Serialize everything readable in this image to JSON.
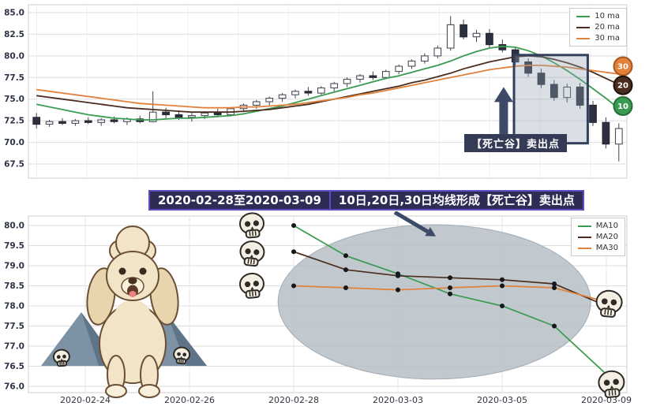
{
  "colors": {
    "ma10": "#3a9b50",
    "ma20": "#4a2d1f",
    "ma30": "#e0813c",
    "annotation_bg": "#343b57",
    "banner_bg": "#2e2c55",
    "banner_border": "#5a4ec0",
    "highlight_border": "#32405c",
    "ellipse_fill": "#b6bfc7",
    "candle_up": "#ffffff",
    "candle_down": "#2c3040"
  },
  "banner": {
    "left": "2020-02-28至2020-03-09",
    "right": "10日,20日,30日均线形成【死亡谷】卖出点"
  },
  "chart_data": [
    {
      "type": "candlestick",
      "title": "",
      "ylim": [
        66.6,
        85.9
      ],
      "yticks": [
        67.5,
        70.0,
        72.5,
        75.0,
        77.5,
        80.0,
        82.5,
        85.0
      ],
      "legend": [
        {
          "label": "10 ma",
          "key": "ma10"
        },
        {
          "label": "20 ma",
          "key": "ma20"
        },
        {
          "label": "30 ma",
          "key": "ma30"
        }
      ],
      "candles_ohlc": [
        [
          72.9,
          73.4,
          71.6,
          72.1
        ],
        [
          72.1,
          72.6,
          71.8,
          72.4
        ],
        [
          72.4,
          72.8,
          72.0,
          72.2
        ],
        [
          72.2,
          72.7,
          71.9,
          72.5
        ],
        [
          72.5,
          72.9,
          72.1,
          72.3
        ],
        [
          72.3,
          72.8,
          71.9,
          72.6
        ],
        [
          72.6,
          73.0,
          72.2,
          72.4
        ],
        [
          72.4,
          72.9,
          72.0,
          72.7
        ],
        [
          72.7,
          73.1,
          72.2,
          72.4
        ],
        [
          72.4,
          75.9,
          72.3,
          73.5
        ],
        [
          73.5,
          74.0,
          72.8,
          73.2
        ],
        [
          73.2,
          73.7,
          72.6,
          72.9
        ],
        [
          72.9,
          73.4,
          72.4,
          73.1
        ],
        [
          73.1,
          73.6,
          72.7,
          73.4
        ],
        [
          73.4,
          73.9,
          72.9,
          73.2
        ],
        [
          73.2,
          74.1,
          73.0,
          73.9
        ],
        [
          73.9,
          74.5,
          73.5,
          74.3
        ],
        [
          74.3,
          74.9,
          73.9,
          74.7
        ],
        [
          74.7,
          75.3,
          74.3,
          75.1
        ],
        [
          75.1,
          75.7,
          74.7,
          75.5
        ],
        [
          75.5,
          76.1,
          75.1,
          75.9
        ],
        [
          75.9,
          76.4,
          75.4,
          75.7
        ],
        [
          75.7,
          76.5,
          75.5,
          76.3
        ],
        [
          76.3,
          77.0,
          75.9,
          76.8
        ],
        [
          76.8,
          77.5,
          76.4,
          77.3
        ],
        [
          77.3,
          77.9,
          76.9,
          77.7
        ],
        [
          77.7,
          78.2,
          77.2,
          77.5
        ],
        [
          77.5,
          78.4,
          77.3,
          78.2
        ],
        [
          78.2,
          79.0,
          77.9,
          78.8
        ],
        [
          78.8,
          79.6,
          78.5,
          79.4
        ],
        [
          79.4,
          80.3,
          79.1,
          80.0
        ],
        [
          80.0,
          81.2,
          79.7,
          80.9
        ],
        [
          80.9,
          84.6,
          80.6,
          83.6
        ],
        [
          83.6,
          84.2,
          81.9,
          82.2
        ],
        [
          82.2,
          83.0,
          81.6,
          82.6
        ],
        [
          82.6,
          83.1,
          80.9,
          81.3
        ],
        [
          81.3,
          81.9,
          80.4,
          80.7
        ],
        [
          80.7,
          81.0,
          78.9,
          79.3
        ],
        [
          79.3,
          79.7,
          77.6,
          78.0
        ],
        [
          78.0,
          78.5,
          76.3,
          76.7
        ],
        [
          76.7,
          77.2,
          74.8,
          75.2
        ],
        [
          75.2,
          76.8,
          74.6,
          76.4
        ],
        [
          76.4,
          76.9,
          73.9,
          74.3
        ],
        [
          74.3,
          74.8,
          71.9,
          72.3
        ],
        [
          72.3,
          72.9,
          69.3,
          69.8
        ],
        [
          69.8,
          72.2,
          67.8,
          71.6
        ]
      ],
      "ma_series": [
        {
          "name": "10 ma",
          "key": "ma10",
          "values": [
            74.4,
            74.1,
            73.8,
            73.5,
            73.2,
            73.0,
            72.8,
            72.7,
            72.6,
            72.6,
            72.7,
            72.8,
            72.8,
            72.9,
            73.0,
            73.1,
            73.3,
            73.6,
            73.9,
            74.2,
            74.6,
            75.0,
            75.4,
            75.8,
            76.2,
            76.6,
            77.0,
            77.4,
            77.7,
            78.1,
            78.5,
            78.9,
            79.4,
            80.0,
            80.5,
            80.9,
            81.1,
            81.0,
            80.6,
            80.0,
            79.2,
            78.3,
            77.3,
            76.2,
            75.1,
            73.9
          ]
        },
        {
          "name": "20 ma",
          "key": "ma20",
          "values": [
            75.4,
            75.2,
            75.0,
            74.8,
            74.6,
            74.4,
            74.2,
            74.0,
            73.9,
            73.8,
            73.7,
            73.6,
            73.5,
            73.5,
            73.5,
            73.5,
            73.6,
            73.7,
            73.8,
            74.0,
            74.2,
            74.4,
            74.7,
            75.0,
            75.3,
            75.6,
            75.9,
            76.2,
            76.5,
            76.9,
            77.2,
            77.6,
            78.0,
            78.5,
            78.9,
            79.3,
            79.6,
            79.9,
            80.0,
            79.9,
            79.6,
            79.2,
            78.7,
            78.1,
            77.4,
            76.7
          ]
        },
        {
          "name": "30 ma",
          "key": "ma30",
          "values": [
            76.1,
            75.9,
            75.7,
            75.5,
            75.3,
            75.1,
            74.9,
            74.7,
            74.5,
            74.4,
            74.3,
            74.2,
            74.1,
            74.0,
            74.0,
            74.0,
            74.1,
            74.1,
            74.2,
            74.3,
            74.4,
            74.6,
            74.8,
            75.0,
            75.2,
            75.5,
            75.7,
            76.0,
            76.3,
            76.6,
            76.9,
            77.2,
            77.5,
            77.8,
            78.1,
            78.4,
            78.6,
            78.8,
            78.9,
            78.9,
            78.8,
            78.7,
            78.5,
            78.3,
            78.1,
            77.9
          ]
        }
      ],
      "end_badges": [
        {
          "label": "30",
          "key": "ma30",
          "value": 78.8
        },
        {
          "label": "20",
          "key": "ma20",
          "value": 76.6
        },
        {
          "label": "10",
          "key": "ma10",
          "value": 74.2
        }
      ],
      "highlight_rect": {
        "from_index": 37.4,
        "to_index": 43.1,
        "from_value": 69.9,
        "to_value": 80.1
      },
      "annotation": {
        "text": "【死亡谷】卖出点",
        "arrow_index": 36.6,
        "arrow_from_value": 69.4,
        "arrow_to_value": 76.4
      }
    },
    {
      "type": "line",
      "title": "",
      "ylim": [
        75.8,
        80.2
      ],
      "yticks": [
        76.0,
        76.5,
        77.0,
        77.5,
        78.0,
        78.5,
        79.0,
        79.5,
        80.0
      ],
      "xtick_labels": [
        "2020-02-24",
        "2020-02-26",
        "2020-02-28",
        "2020-03-03",
        "2020-03-05",
        "2020-03-09"
      ],
      "xtick_days": [
        0,
        2,
        4,
        6,
        8,
        10
      ],
      "dates": [
        "2020-02-28",
        "2020-03-02",
        "2020-03-03",
        "2020-03-04",
        "2020-03-05",
        "2020-03-06",
        "2020-03-09"
      ],
      "day_index": [
        4,
        5,
        6,
        7,
        8,
        9,
        10
      ],
      "legend": [
        {
          "label": "MA10",
          "key": "ma10"
        },
        {
          "label": "MA20",
          "key": "ma20"
        },
        {
          "label": "MA30",
          "key": "ma30"
        }
      ],
      "series": [
        {
          "name": "MA10",
          "key": "ma10",
          "values": [
            80.0,
            79.25,
            78.8,
            78.3,
            78.0,
            77.5,
            76.3
          ]
        },
        {
          "name": "MA20",
          "key": "ma20",
          "values": [
            79.35,
            78.9,
            78.75,
            78.7,
            78.65,
            78.55,
            78.0
          ]
        },
        {
          "name": "MA30",
          "key": "ma30",
          "values": [
            78.5,
            78.45,
            78.4,
            78.45,
            78.5,
            78.45,
            78.1
          ]
        }
      ],
      "highlight_ellipse": {
        "center_day": 6.7,
        "center_value": 78.1,
        "rx_days": 3.0,
        "ry_value": 1.92
      },
      "skulls": [
        {
          "day": 3.2,
          "value": 80.0
        },
        {
          "day": 3.2,
          "value": 79.3
        },
        {
          "day": 3.2,
          "value": 78.5
        },
        {
          "day": 10.05,
          "value": 78.05
        },
        {
          "day": 10.1,
          "value": 76.05
        }
      ],
      "arrow": {
        "from_day": 5.94,
        "from_value": 80.33,
        "to_day": 6.57,
        "to_value": 79.85
      }
    }
  ],
  "decorations": {
    "skull_icon": "skull-icon",
    "poodle": "poodle-dog-illustration",
    "mountains": "mountains-illustration"
  }
}
